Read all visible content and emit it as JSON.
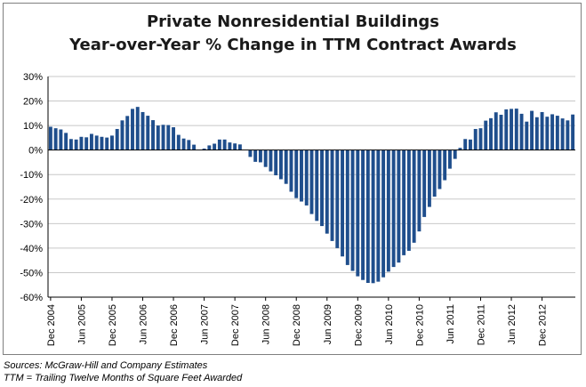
{
  "colors": {
    "bar": "#1f4e8c",
    "grid": "#c8c8c8",
    "axis": "#000000"
  },
  "chart_data": {
    "type": "bar",
    "title_lines": [
      "Private Nonresidential Buildings",
      "Year-over-Year % Change in TTM Contract Awards"
    ],
    "xlabel": "",
    "ylabel": "",
    "ylim": [
      -60,
      30
    ],
    "y_ticks": [
      30,
      20,
      10,
      0,
      -10,
      -20,
      -30,
      -40,
      -50,
      -60
    ],
    "y_tick_labels": [
      "30%",
      "20%",
      "10%",
      "0%",
      "-10%",
      "-20%",
      "-30%",
      "-40%",
      "-50%",
      "-60%"
    ],
    "grid": "horizontal",
    "legend": "none",
    "x_tick_labels": [
      "Dec 2004",
      "Jun 2005",
      "Dec 2005",
      "Jun 2006",
      "Dec 2006",
      "Jun 2007",
      "Dec 2007",
      "Jun 2008",
      "Dec 2008",
      "Jun 2009",
      "Dec 2009",
      "Jun 2010",
      "Dec 2010",
      "Jun 2011",
      "Dec 2011",
      "Jun 2012",
      "Dec 2012"
    ],
    "x_tick_every": 6,
    "values": [
      9.5,
      8.9,
      8.4,
      7.0,
      4.5,
      4.3,
      5.4,
      5.2,
      6.6,
      5.9,
      5.4,
      5.1,
      5.9,
      8.6,
      12.1,
      13.9,
      16.8,
      17.6,
      15.5,
      14.0,
      12.2,
      10.0,
      10.3,
      10.2,
      9.3,
      6.2,
      4.7,
      4.1,
      2.2,
      0.1,
      0.6,
      1.9,
      2.6,
      4.3,
      4.3,
      3.1,
      2.7,
      2.3,
      0.0,
      -2.8,
      -4.8,
      -5.0,
      -6.9,
      -8.7,
      -10.3,
      -11.9,
      -13.8,
      -17.0,
      -19.6,
      -21.0,
      -22.6,
      -26.1,
      -28.9,
      -31.0,
      -34.1,
      -37.1,
      -40.0,
      -43.4,
      -46.9,
      -49.3,
      -51.5,
      -53.0,
      -54.2,
      -54.3,
      -53.7,
      -51.9,
      -49.6,
      -47.7,
      -45.9,
      -42.9,
      -41.1,
      -37.8,
      -33.2,
      -27.3,
      -23.2,
      -19.0,
      -15.9,
      -12.3,
      -7.6,
      -3.6,
      0.9,
      4.5,
      4.3,
      8.6,
      8.9,
      12.0,
      13.0,
      15.4,
      14.4,
      16.6,
      16.8,
      16.9,
      14.8,
      11.6,
      16.0,
      13.4,
      15.5,
      13.6,
      14.6,
      14.0,
      12.9,
      12.1,
      14.5
    ]
  },
  "footer": {
    "sources": "Sources: McGraw-Hill and Company Estimates",
    "ttm_note": "TTM = Trailing Twelve Months of Square Feet Awarded"
  }
}
